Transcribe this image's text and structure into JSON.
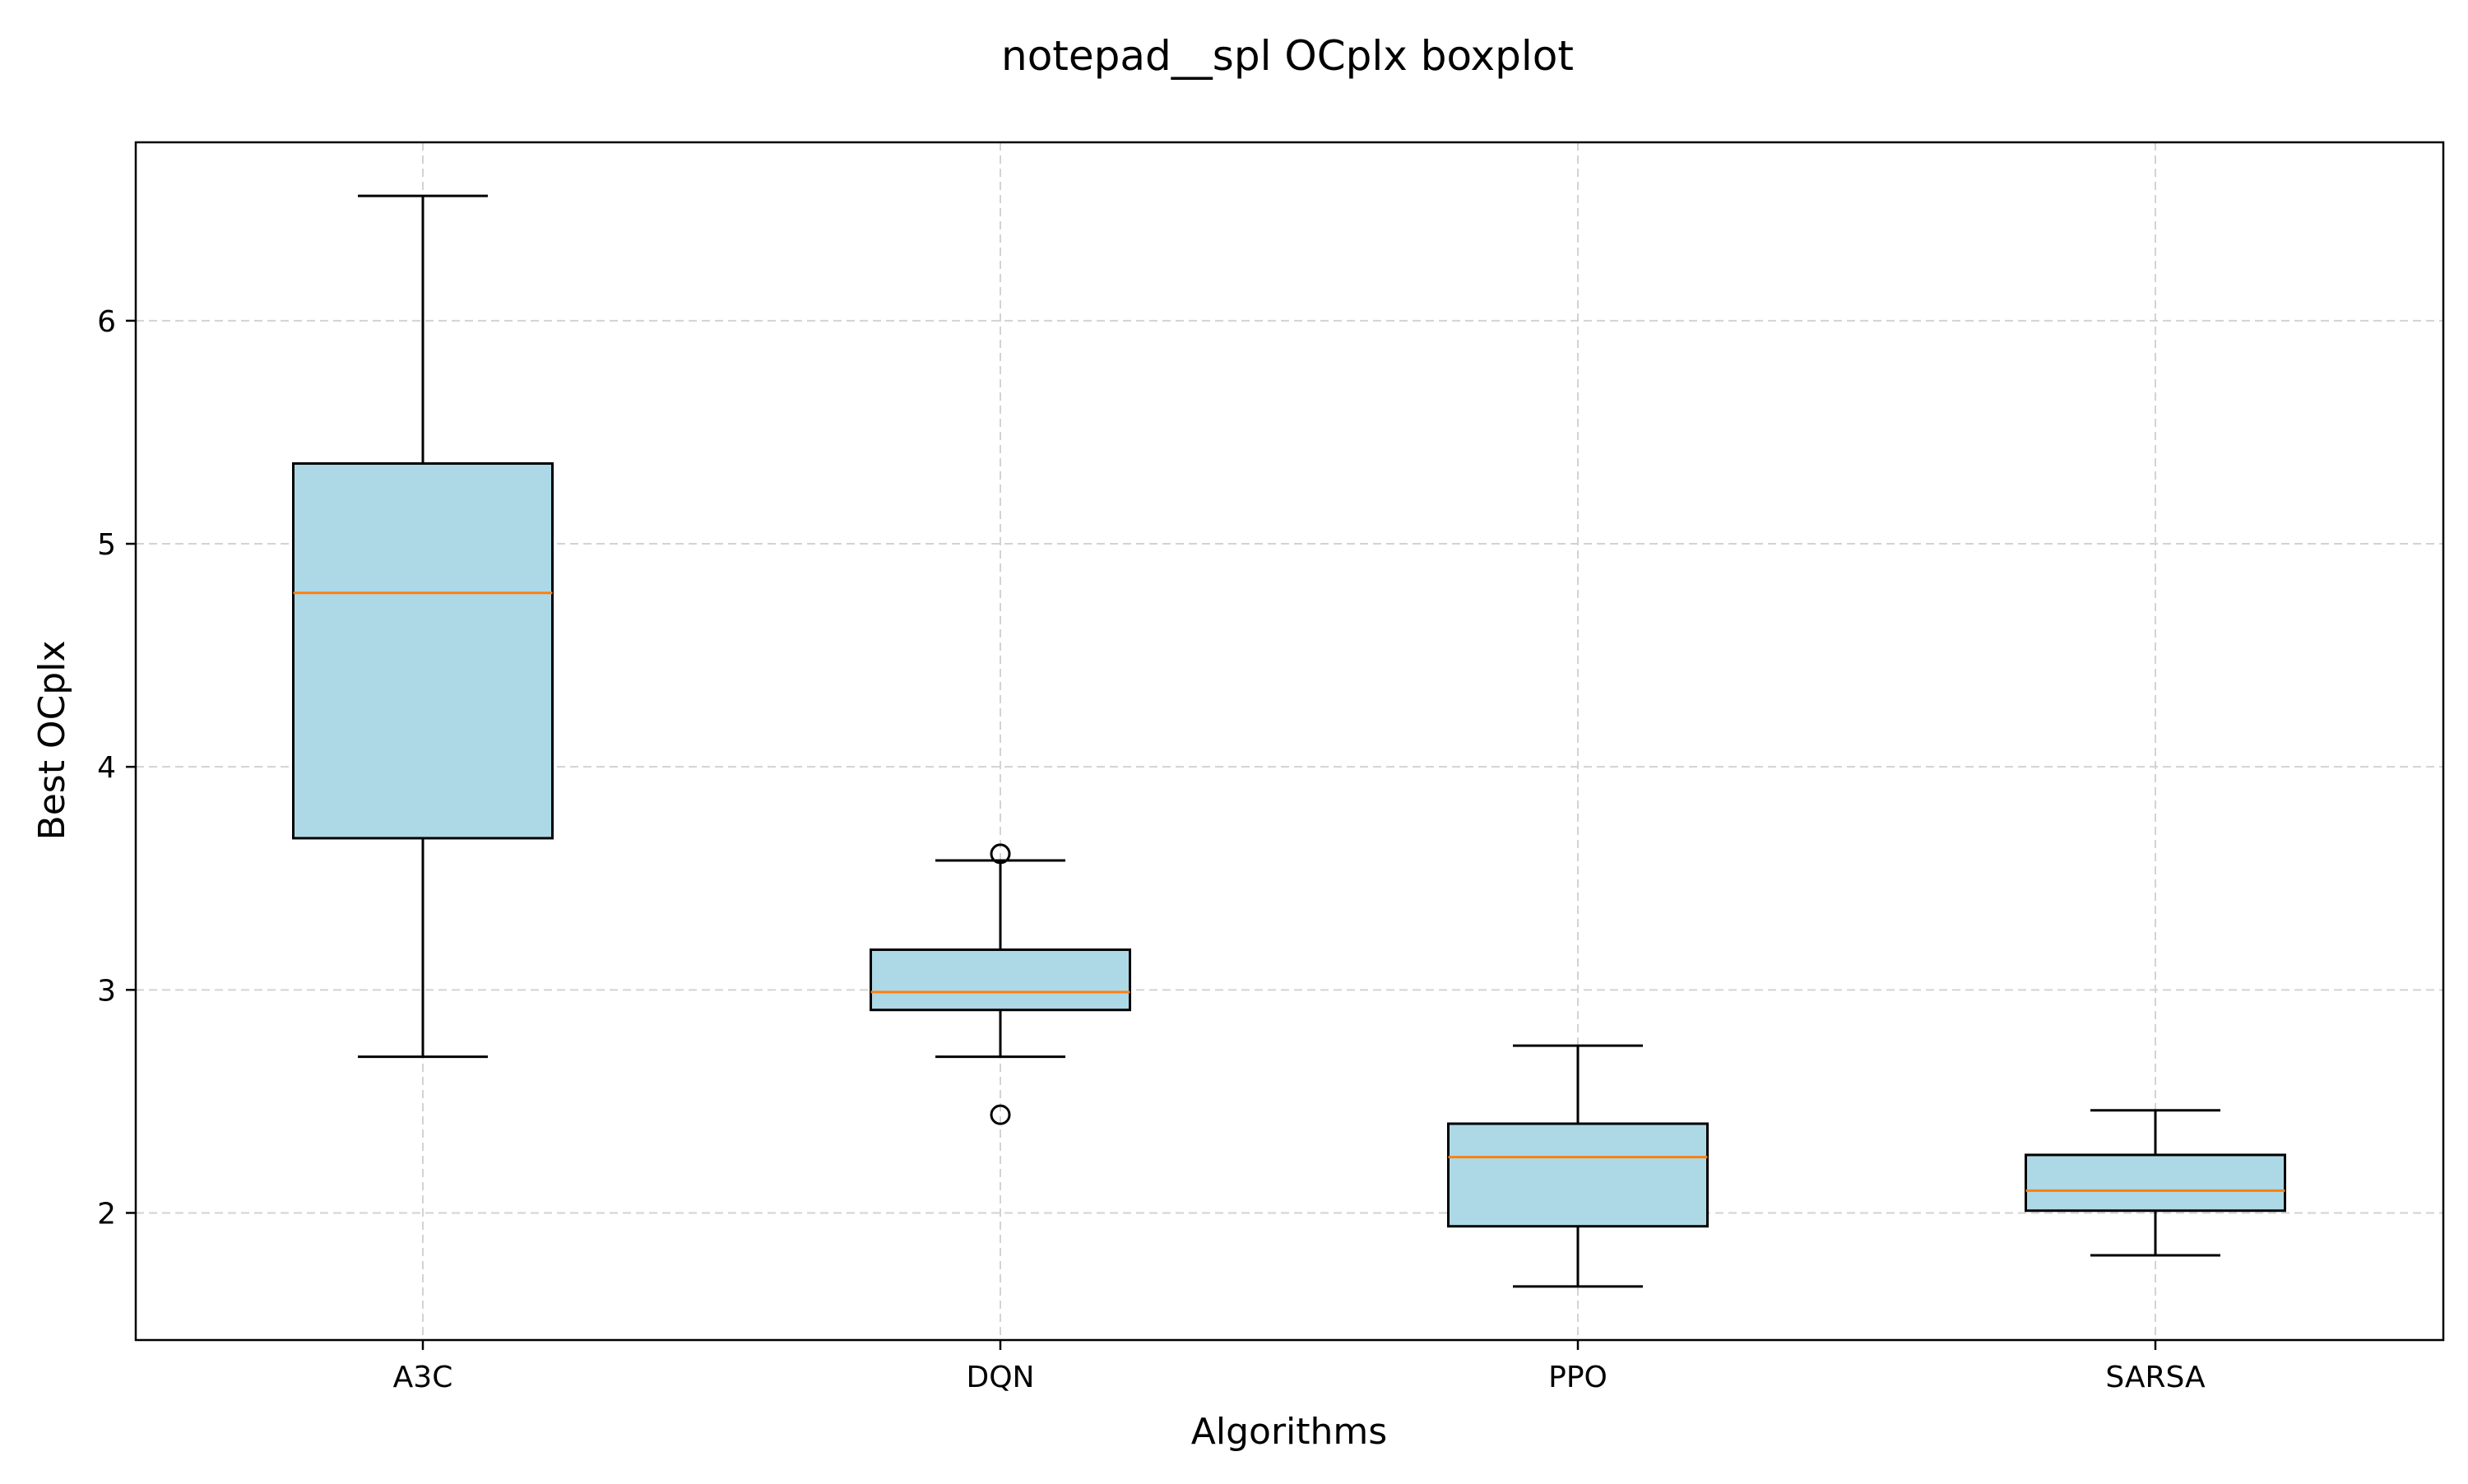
{
  "chart_data": {
    "type": "boxplot",
    "title": "notepad__spl OCplx boxplot",
    "xlabel": "Algorithms",
    "ylabel": "Best OCplx",
    "ylim": [
      1.43,
      6.8
    ],
    "yticks": [
      2,
      3,
      4,
      5,
      6
    ],
    "grid": true,
    "categories": [
      "A3C",
      "DQN",
      "PPO",
      "SARSA"
    ],
    "boxes": [
      {
        "label": "A3C",
        "whisker_low": 2.7,
        "q1": 3.68,
        "median": 4.78,
        "q3": 5.36,
        "whisker_high": 6.56,
        "outliers": []
      },
      {
        "label": "DQN",
        "whisker_low": 2.7,
        "q1": 2.91,
        "median": 2.99,
        "q3": 3.18,
        "whisker_high": 3.58,
        "outliers": [
          3.61,
          2.44
        ]
      },
      {
        "label": "PPO",
        "whisker_low": 1.67,
        "q1": 1.94,
        "median": 2.25,
        "q3": 2.4,
        "whisker_high": 2.75,
        "outliers": []
      },
      {
        "label": "SARSA",
        "whisker_low": 1.81,
        "q1": 2.01,
        "median": 2.1,
        "q3": 2.26,
        "whisker_high": 2.46,
        "outliers": []
      }
    ],
    "colors": {
      "box_fill": "#add8e6",
      "box_edge": "#000000",
      "median": "#ff7f0e",
      "grid": "#d3d3d3"
    }
  }
}
